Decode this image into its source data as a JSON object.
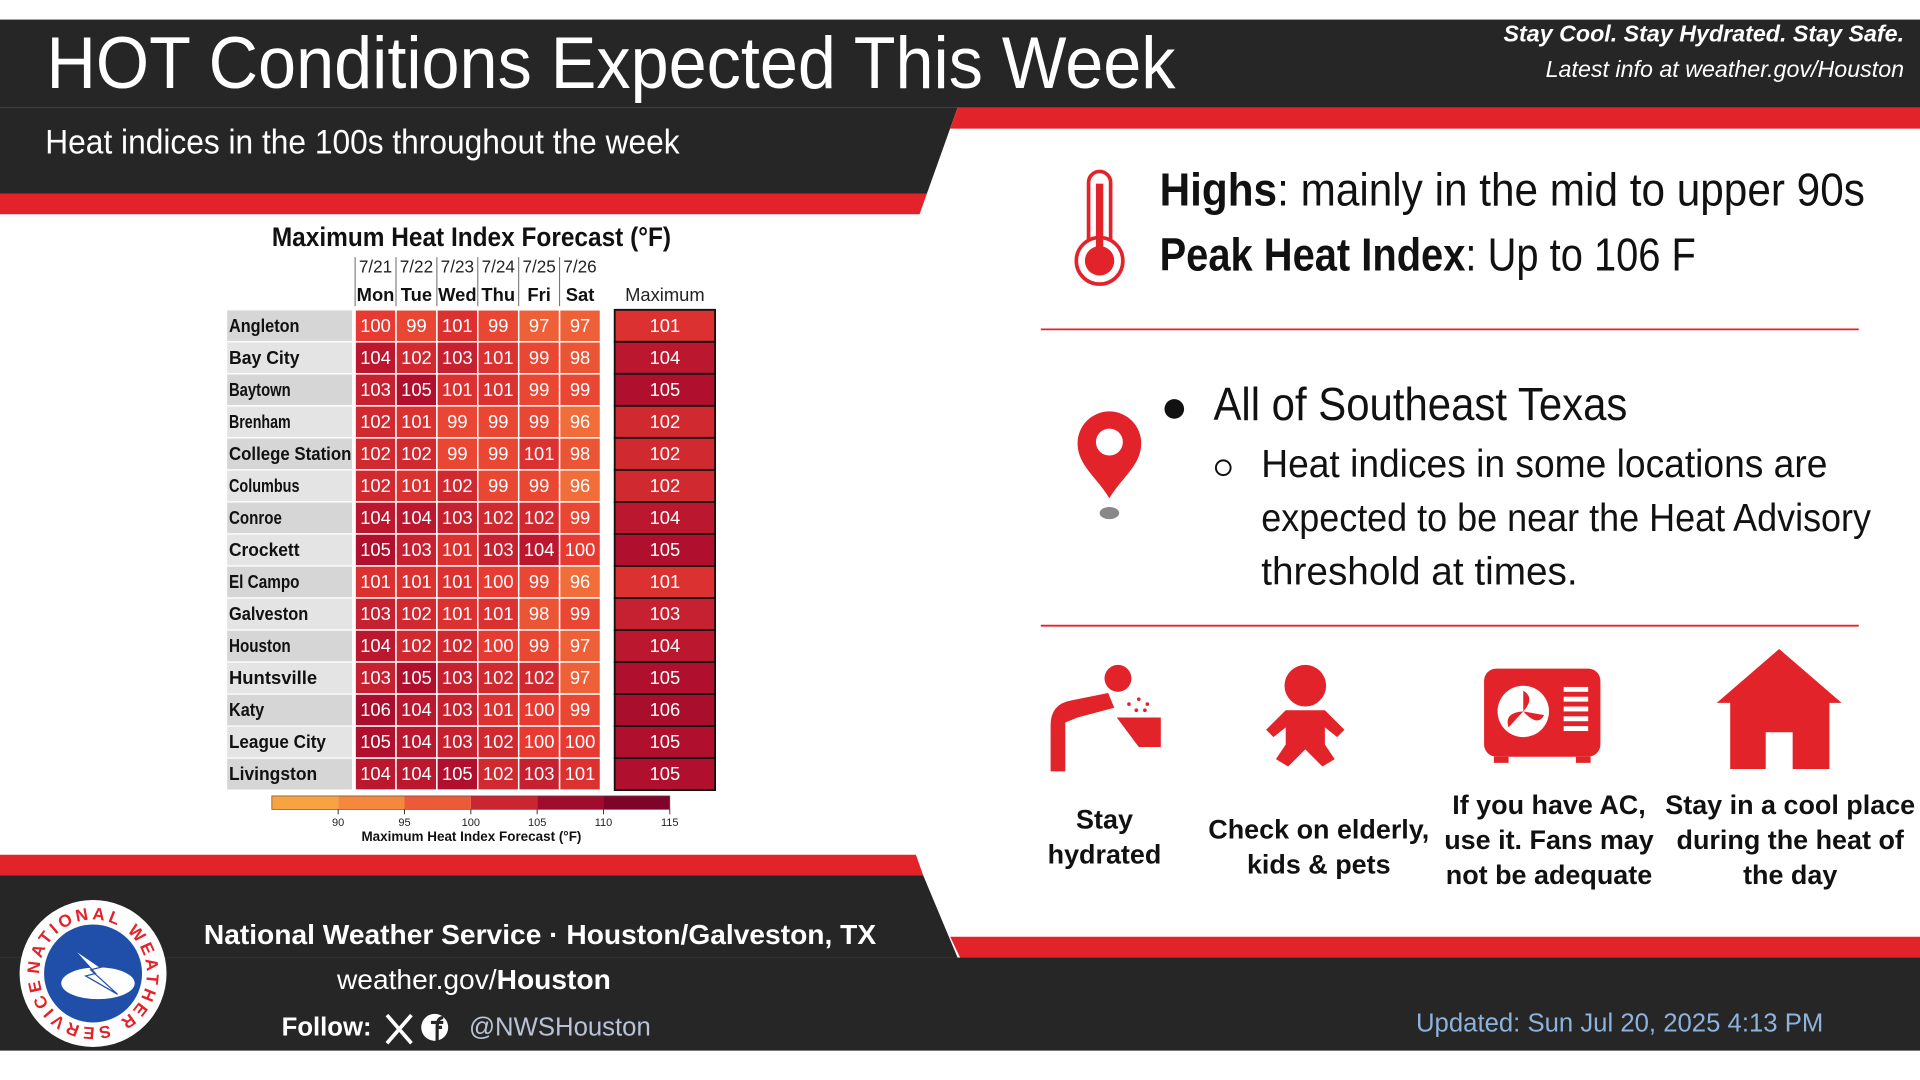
{
  "header": {
    "title": "HOT Conditions Expected This Week",
    "subtitle": "Heat indices in the 100s throughout the week",
    "tagline": "Stay Cool. Stay Hydrated. Stay Safe.",
    "info": "Latest info at weather.gov/Houston"
  },
  "table": {
    "title": "Maximum Heat Index Forecast (°F)",
    "dates": [
      "7/21",
      "7/22",
      "7/23",
      "7/24",
      "7/25",
      "7/26"
    ],
    "days": [
      "Mon",
      "Tue",
      "Wed",
      "Thu",
      "Fri",
      "Sat"
    ],
    "max_header": "Maximum",
    "rows": [
      {
        "name": "Angleton",
        "values": [
          100,
          99,
          101,
          99,
          97,
          97
        ],
        "max": 101
      },
      {
        "name": "Bay City",
        "values": [
          104,
          102,
          103,
          101,
          99,
          98
        ],
        "max": 104
      },
      {
        "name": "Baytown",
        "values": [
          103,
          105,
          101,
          101,
          99,
          99
        ],
        "max": 105
      },
      {
        "name": "Brenham",
        "values": [
          102,
          101,
          99,
          99,
          99,
          96
        ],
        "max": 102
      },
      {
        "name": "College Station",
        "values": [
          102,
          102,
          99,
          99,
          101,
          98
        ],
        "max": 102
      },
      {
        "name": "Columbus",
        "values": [
          102,
          101,
          102,
          99,
          99,
          96
        ],
        "max": 102
      },
      {
        "name": "Conroe",
        "values": [
          104,
          104,
          103,
          102,
          102,
          99
        ],
        "max": 104
      },
      {
        "name": "Crockett",
        "values": [
          105,
          103,
          101,
          103,
          104,
          100
        ],
        "max": 105
      },
      {
        "name": "El Campo",
        "values": [
          101,
          101,
          101,
          100,
          99,
          96
        ],
        "max": 101
      },
      {
        "name": "Galveston",
        "values": [
          103,
          102,
          101,
          101,
          98,
          99
        ],
        "max": 103
      },
      {
        "name": "Houston",
        "values": [
          104,
          102,
          102,
          100,
          99,
          97
        ],
        "max": 104
      },
      {
        "name": "Huntsville",
        "values": [
          103,
          105,
          103,
          102,
          102,
          97
        ],
        "max": 105
      },
      {
        "name": "Katy",
        "values": [
          106,
          104,
          103,
          101,
          100,
          99
        ],
        "max": 106
      },
      {
        "name": "League City",
        "values": [
          105,
          104,
          103,
          102,
          100,
          100
        ],
        "max": 105
      },
      {
        "name": "Livingston",
        "values": [
          104,
          104,
          105,
          102,
          103,
          101
        ],
        "max": 105
      }
    ],
    "colorbar": {
      "lim": [
        85,
        115
      ],
      "ticks": [
        90,
        95,
        100,
        105,
        110,
        115
      ],
      "label": "Maximum Heat Index Forecast (°F)"
    }
  },
  "summary": {
    "highs_label": "Highs",
    "highs_text": ": mainly in the mid to upper 90s",
    "peak_label": "Peak Heat Index",
    "peak_text": ": Up to 106 F",
    "area": "All of Southeast Texas",
    "detail_lines": [
      "Heat indices in some locations are",
      "expected to be near the Heat Advisory",
      "threshold at times."
    ]
  },
  "tips": [
    {
      "lines": [
        "Stay",
        "hydrated"
      ]
    },
    {
      "lines": [
        "Check on elderly,",
        "kids & pets"
      ]
    },
    {
      "lines": [
        "If you have AC,",
        "use it. Fans may",
        "not be adequate"
      ]
    },
    {
      "lines": [
        "Stay in a cool place",
        "during the heat of",
        "the day"
      ]
    }
  ],
  "footer": {
    "logo_text": "NATIONAL WEATHER SERVICE",
    "office": "National Weather Service · Houston/Galveston, TX",
    "site": "weather.gov/",
    "site_bold": "Houston",
    "follow": "Follow:",
    "handle": "@NWSHouston",
    "updated": "Updated: Sun Jul 20, 2025 4:13 PM"
  }
}
